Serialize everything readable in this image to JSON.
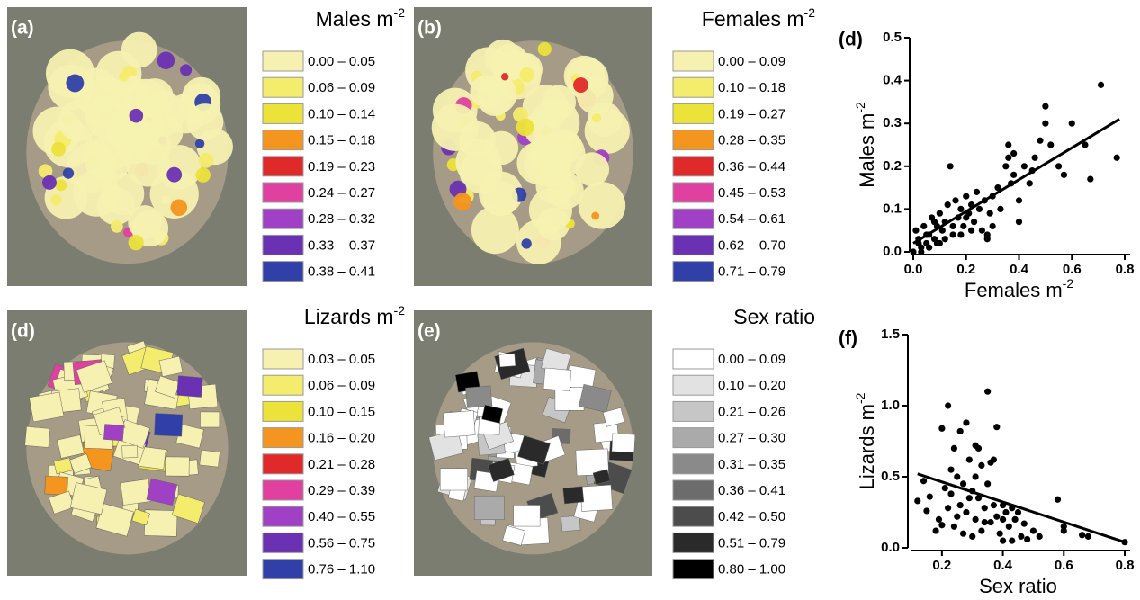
{
  "chart_data": [
    {
      "type": "map",
      "label": "(a)",
      "legend_title": "Males m",
      "legend_title_sup": "-2",
      "legend": [
        {
          "label": "0.00 – 0.05",
          "color": "#f6f1b0"
        },
        {
          "label": "0.06 – 0.09",
          "color": "#f4ec6c"
        },
        {
          "label": "0.10 – 0.14",
          "color": "#ebe23a"
        },
        {
          "label": "0.15 – 0.18",
          "color": "#f3951f"
        },
        {
          "label": "0.19 – 0.23",
          "color": "#e02a2a"
        },
        {
          "label": "0.24 – 0.27",
          "color": "#e040a0"
        },
        {
          "label": "0.28 – 0.32",
          "color": "#a040c4"
        },
        {
          "label": "0.33 – 0.37",
          "color": "#6a32b2"
        },
        {
          "label": "0.38 – 0.41",
          "color": "#3040a8"
        }
      ]
    },
    {
      "type": "map",
      "label": "(b)",
      "legend_title": "Females m",
      "legend_title_sup": "-2",
      "legend": [
        {
          "label": "0.00 – 0.09",
          "color": "#f6f1b0"
        },
        {
          "label": "0.10 – 0.18",
          "color": "#f4ec6c"
        },
        {
          "label": "0.19 – 0.27",
          "color": "#ebe23a"
        },
        {
          "label": "0.28 – 0.35",
          "color": "#f3951f"
        },
        {
          "label": "0.36 – 0.44",
          "color": "#e02a2a"
        },
        {
          "label": "0.45 – 0.53",
          "color": "#e040a0"
        },
        {
          "label": "0.54 – 0.61",
          "color": "#a040c4"
        },
        {
          "label": "0.62 – 0.70",
          "color": "#6a32b2"
        },
        {
          "label": "0.71 – 0.79",
          "color": "#3040a8"
        }
      ]
    },
    {
      "type": "scatter",
      "label": "(d)",
      "xlabel": "Females m",
      "xlabel_sup": "-2",
      "ylabel": "Males m",
      "ylabel_sup": "-2",
      "x": [
        0.0,
        0.01,
        0.02,
        0.03,
        0.04,
        0.05,
        0.06,
        0.07,
        0.08,
        0.09,
        0.1,
        0.1,
        0.11,
        0.12,
        0.13,
        0.14,
        0.15,
        0.16,
        0.17,
        0.18,
        0.19,
        0.2,
        0.21,
        0.22,
        0.23,
        0.24,
        0.25,
        0.26,
        0.27,
        0.28,
        0.29,
        0.3,
        0.32,
        0.33,
        0.35,
        0.36,
        0.37,
        0.38,
        0.4,
        0.42,
        0.44,
        0.46,
        0.48,
        0.5,
        0.5,
        0.52,
        0.55,
        0.57,
        0.6,
        0.65,
        0.67,
        0.71,
        0.77,
        0.03,
        0.06,
        0.09,
        0.12,
        0.15,
        0.2,
        0.22,
        0.28,
        0.3,
        0.36,
        0.4,
        0.02,
        0.05,
        0.08,
        0.45,
        0.38,
        0.18
      ],
      "y": [
        0.0,
        0.05,
        0.03,
        0.01,
        0.06,
        0.02,
        0.04,
        0.08,
        0.03,
        0.06,
        0.02,
        0.09,
        0.05,
        0.07,
        0.11,
        0.2,
        0.04,
        0.12,
        0.08,
        0.1,
        0.06,
        0.13,
        0.09,
        0.11,
        0.07,
        0.14,
        0.1,
        0.05,
        0.12,
        0.03,
        0.09,
        0.13,
        0.15,
        0.1,
        0.2,
        0.25,
        0.16,
        0.18,
        0.07,
        0.2,
        0.16,
        0.22,
        0.26,
        0.34,
        0.3,
        0.25,
        0.2,
        0.18,
        0.3,
        0.25,
        0.17,
        0.39,
        0.22,
        0.0,
        0.01,
        0.02,
        0.03,
        0.06,
        0.08,
        0.05,
        0.04,
        0.06,
        0.22,
        0.12,
        0.02,
        0.04,
        0.07,
        0.19,
        0.23,
        0.04
      ],
      "fit_x": [
        0,
        0.78
      ],
      "fit_y": [
        0.02,
        0.31
      ],
      "xlim": [
        0,
        0.8
      ],
      "xticks": [
        {
          "value": 0,
          "label": "0.0"
        },
        0.2,
        0.4,
        0.6,
        0.8
      ],
      "ylim": [
        0,
        0.5
      ],
      "yticks": [
        {
          "value": 0,
          "label": "0.0"
        },
        0.1,
        0.2,
        0.3,
        0.4,
        0.5
      ],
      "color": "#000000"
    },
    {
      "type": "map",
      "label": "(d)",
      "legend_title": "Lizards m",
      "legend_title_sup": "-2",
      "legend": [
        {
          "label": "0.03 – 0.05",
          "color": "#f6f1b0"
        },
        {
          "label": "0.06 – 0.09",
          "color": "#f4ec6c"
        },
        {
          "label": "0.10 – 0.15",
          "color": "#ebe23a"
        },
        {
          "label": "0.16 – 0.20",
          "color": "#f3951f"
        },
        {
          "label": "0.21 – 0.28",
          "color": "#e02a2a"
        },
        {
          "label": "0.29 – 0.39",
          "color": "#e040a0"
        },
        {
          "label": "0.40 – 0.55",
          "color": "#a040c4"
        },
        {
          "label": "0.56 – 0.75",
          "color": "#6a32b2"
        },
        {
          "label": "0.76 – 1.10",
          "color": "#3040a8"
        }
      ]
    },
    {
      "type": "map",
      "label": "(e)",
      "legend_title": "Sex ratio",
      "legend": [
        {
          "label": "0.00 – 0.09",
          "color": "#ffffff"
        },
        {
          "label": "0.10 – 0.20",
          "color": "#e2e2e2"
        },
        {
          "label": "0.21 – 0.26",
          "color": "#c6c6c6"
        },
        {
          "label": "0.27 – 0.30",
          "color": "#aaaaaa"
        },
        {
          "label": "0.31 – 0.35",
          "color": "#8a8a8a"
        },
        {
          "label": "0.36 – 0.41",
          "color": "#6c6c6c"
        },
        {
          "label": "0.42 – 0.50",
          "color": "#4c4c4c"
        },
        {
          "label": "0.51 – 0.79",
          "color": "#2a2a2a"
        },
        {
          "label": "0.80 – 1.00",
          "color": "#000000"
        }
      ]
    },
    {
      "type": "scatter",
      "label": "(f)",
      "xlabel": "Sex ratio",
      "ylabel": "Lizards m",
      "ylabel_sup": "-2",
      "x": [
        0.12,
        0.14,
        0.16,
        0.18,
        0.19,
        0.2,
        0.21,
        0.22,
        0.22,
        0.23,
        0.24,
        0.24,
        0.25,
        0.26,
        0.26,
        0.27,
        0.27,
        0.28,
        0.28,
        0.29,
        0.3,
        0.3,
        0.31,
        0.31,
        0.32,
        0.32,
        0.33,
        0.33,
        0.34,
        0.35,
        0.35,
        0.36,
        0.36,
        0.37,
        0.37,
        0.38,
        0.38,
        0.39,
        0.4,
        0.4,
        0.41,
        0.42,
        0.43,
        0.44,
        0.45,
        0.46,
        0.48,
        0.5,
        0.52,
        0.58,
        0.6,
        0.6,
        0.66,
        0.68,
        0.8,
        0.2,
        0.25,
        0.29,
        0.34,
        0.4,
        0.15,
        0.31,
        0.43,
        0.47,
        0.23
      ],
      "y": [
        0.33,
        0.47,
        0.36,
        0.12,
        0.2,
        0.84,
        0.42,
        1.0,
        0.28,
        0.55,
        0.7,
        0.15,
        0.5,
        0.82,
        0.3,
        0.1,
        0.45,
        0.88,
        0.25,
        0.62,
        0.4,
        0.08,
        0.72,
        0.2,
        0.35,
        0.7,
        0.12,
        0.58,
        0.28,
        1.1,
        0.45,
        0.6,
        0.18,
        0.62,
        0.3,
        0.85,
        0.22,
        0.1,
        0.3,
        0.05,
        0.25,
        0.15,
        0.28,
        0.2,
        0.25,
        0.08,
        0.06,
        0.12,
        0.08,
        0.34,
        0.15,
        0.12,
        0.09,
        0.08,
        0.04,
        0.16,
        0.22,
        0.35,
        0.18,
        0.2,
        0.26,
        0.5,
        0.05,
        0.17,
        0.38
      ],
      "fit_x": [
        0.12,
        0.8
      ],
      "fit_y": [
        0.52,
        0.04
      ],
      "xlim": [
        0.1,
        0.8
      ],
      "xticks": [
        0.2,
        0.4,
        0.6,
        0.8
      ],
      "ylim": [
        0,
        1.5
      ],
      "yticks": [
        {
          "value": 0,
          "label": "0.0"
        },
        0.5,
        {
          "value": 1,
          "label": "1.0"
        },
        1.5
      ],
      "color": "#000000"
    }
  ]
}
